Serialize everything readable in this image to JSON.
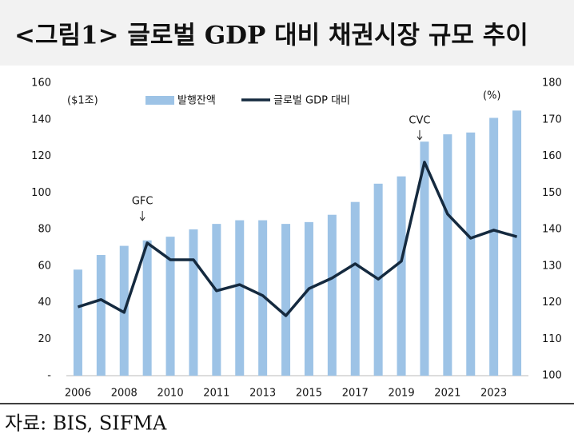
{
  "chart_data": {
    "type": "bar_line",
    "title": "<그림1> 글로벌 GDP 대비 채권시장 규모 추이",
    "source": "자료: BIS, SIFMA",
    "y_unit": "($1조)",
    "y2_unit": "(%)",
    "annotations": [
      {
        "text": "GFC",
        "index": 3
      },
      {
        "text": "CVC",
        "index": 15
      }
    ],
    "categories": [
      "2006",
      null,
      "2008",
      null,
      "2010",
      null,
      "2011",
      null,
      "2013",
      null,
      "2015",
      null,
      "2017",
      null,
      "2019",
      null,
      "2021",
      null,
      "2023",
      null
    ],
    "series": [
      {
        "name": "발행잔액",
        "type": "bar",
        "color": "#9dc3e6",
        "values": [
          58,
          66,
          71,
          74,
          76,
          80,
          83,
          85,
          85,
          83,
          84,
          88,
          95,
          105,
          109,
          128,
          132,
          133,
          141,
          145
        ]
      },
      {
        "name": "글로벌 GDP 대비",
        "type": "line",
        "axis": "y2",
        "color": "#152a3f",
        "values": [
          118.8,
          120.8,
          117.3,
          136.3,
          131.7,
          131.7,
          123.2,
          124.9,
          121.9,
          116.4,
          123.8,
          126.7,
          130.6,
          126.4,
          131.3,
          158.4,
          144.2,
          137.6,
          139.8,
          138.0
        ]
      }
    ],
    "ylim": [
      0,
      160
    ],
    "yticks": [
      {
        "value": 0,
        "label": "-"
      },
      20,
      40,
      60,
      80,
      100,
      120,
      140,
      160
    ],
    "y2lim": [
      100,
      180
    ],
    "y2ticks": [
      100,
      110,
      120,
      130,
      140,
      150,
      160,
      170,
      180
    ],
    "grid": false
  }
}
